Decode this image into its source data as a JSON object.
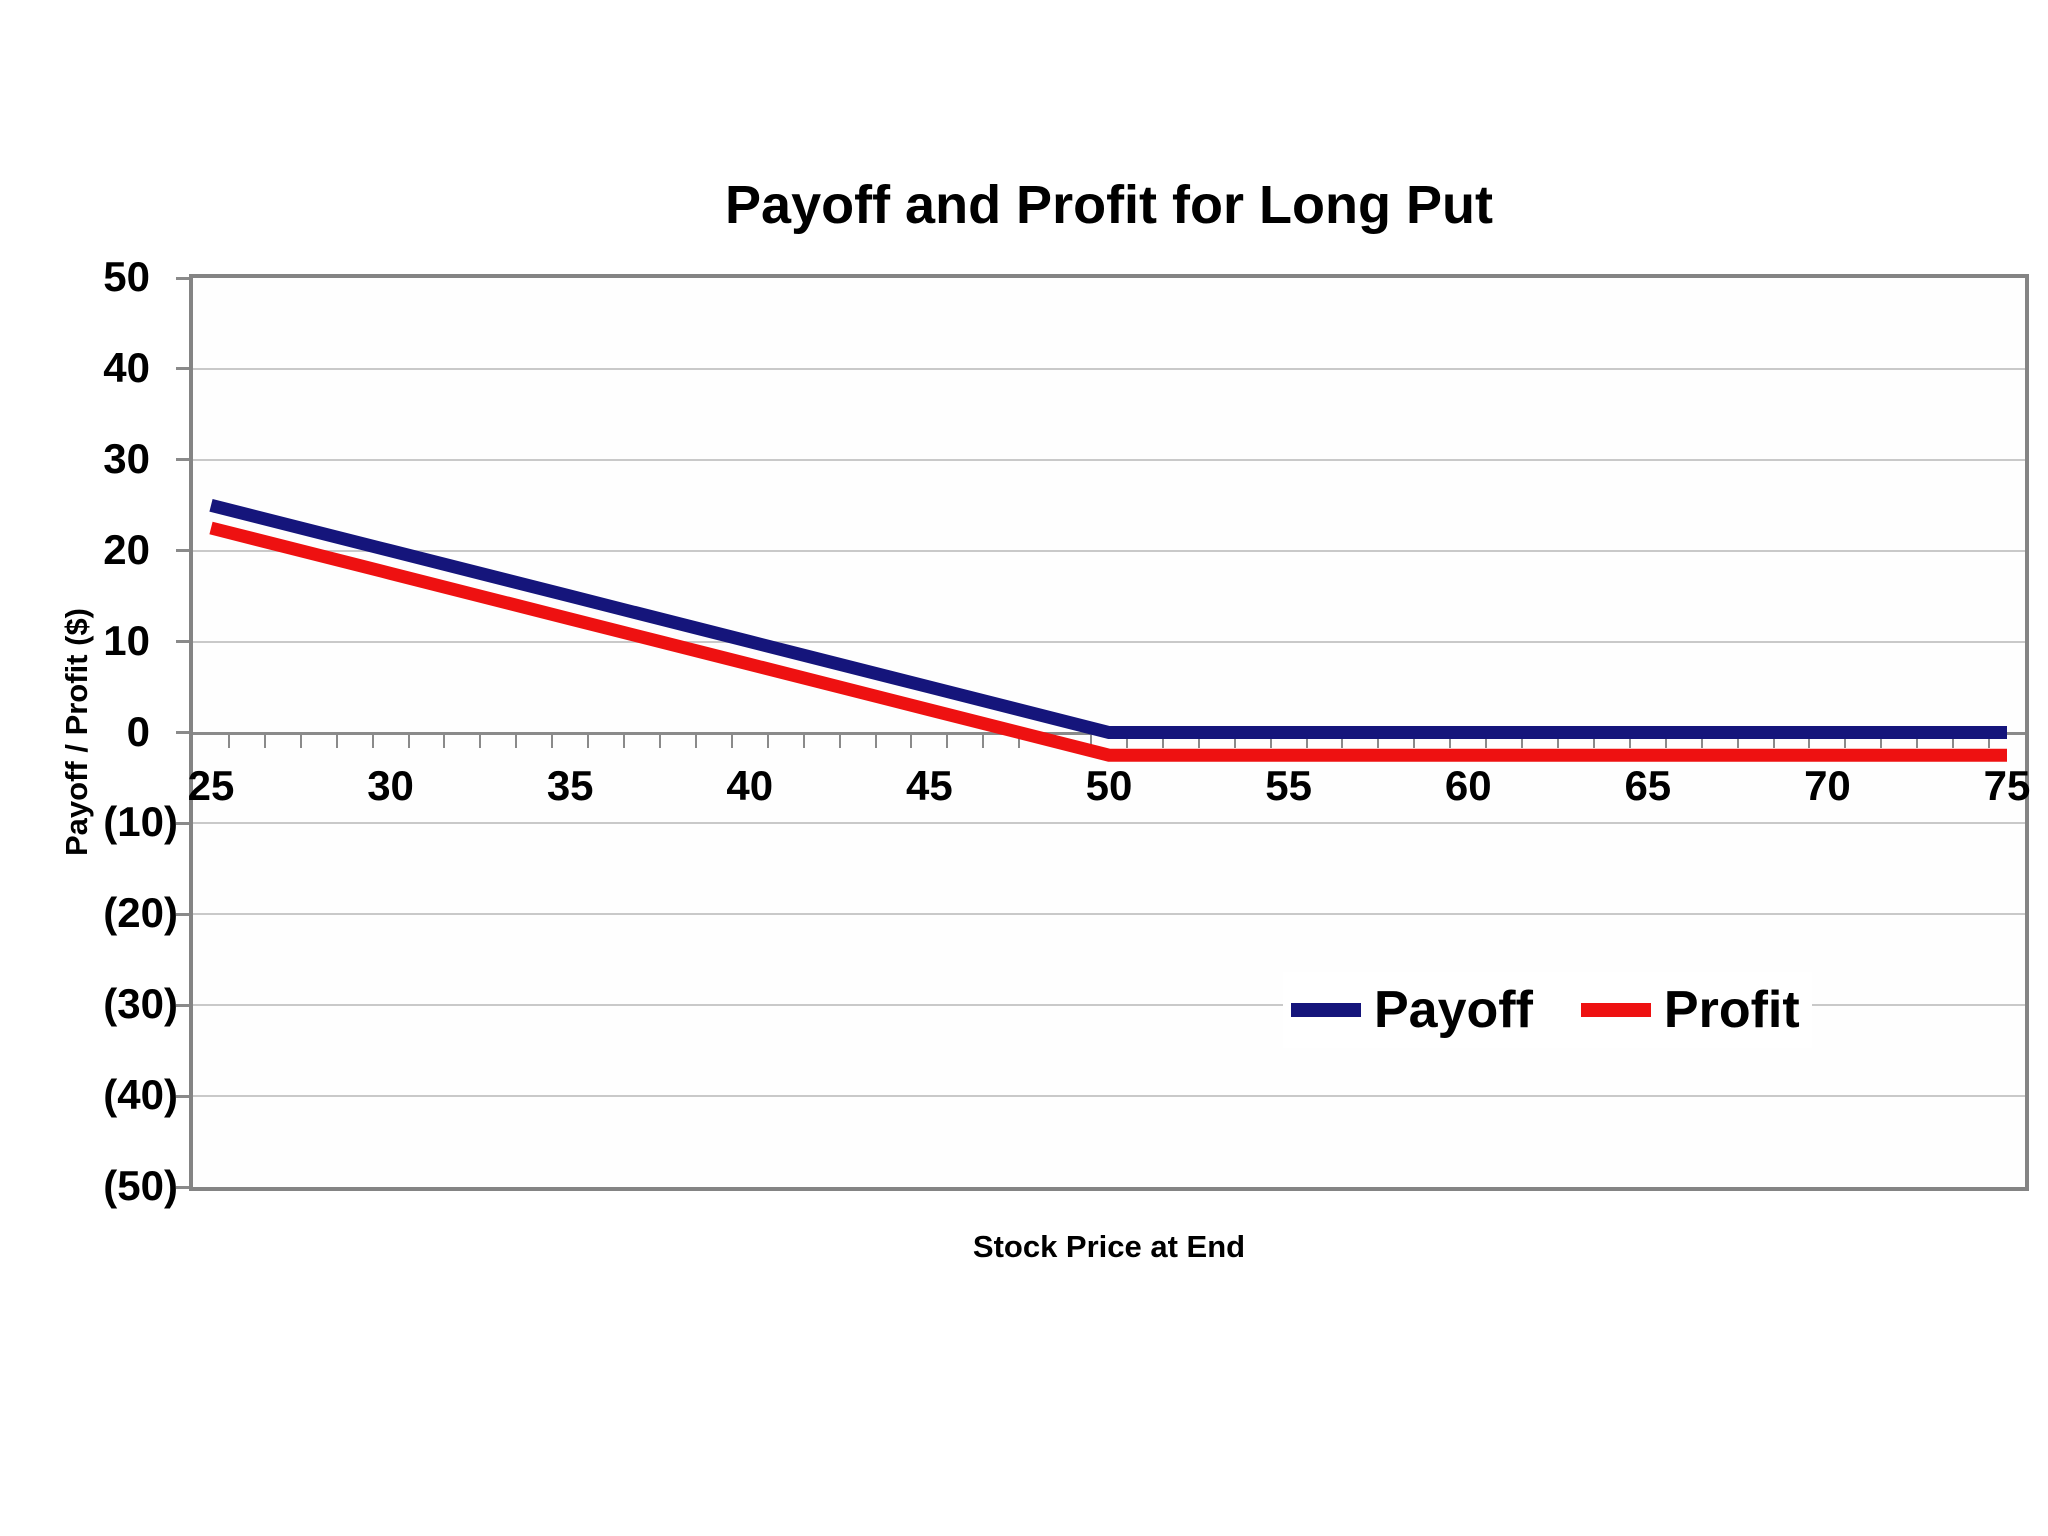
{
  "chart_data": {
    "type": "line",
    "title": "Payoff and Profit for Long Put",
    "xlabel": "Stock Price at End",
    "ylabel": "Payoff / Profit ($)",
    "xlim": [
      25,
      75
    ],
    "ylim": [
      -50,
      50
    ],
    "x_ticks": [
      25,
      30,
      35,
      40,
      45,
      50,
      55,
      60,
      65,
      70,
      75
    ],
    "x_minor_tick_step": 1,
    "y_ticks": [
      {
        "v": 50,
        "label": "50"
      },
      {
        "v": 40,
        "label": "40"
      },
      {
        "v": 30,
        "label": "30"
      },
      {
        "v": 20,
        "label": "20"
      },
      {
        "v": 10,
        "label": "10"
      },
      {
        "v": 0,
        "label": "0"
      },
      {
        "v": -10,
        "label": "(10)"
      },
      {
        "v": -20,
        "label": "(20)"
      },
      {
        "v": -30,
        "label": "(30)"
      },
      {
        "v": -40,
        "label": "(40)"
      },
      {
        "v": -50,
        "label": "(50)"
      }
    ],
    "grid": "horizontal",
    "legend_position": "inside-lower-right",
    "x": [
      25,
      30,
      35,
      40,
      45,
      50,
      55,
      60,
      65,
      70,
      75
    ],
    "series": [
      {
        "name": "Payoff",
        "color": "#15157B",
        "values": [
          25,
          20,
          15,
          10,
          5,
          0,
          0,
          0,
          0,
          0,
          0
        ]
      },
      {
        "name": "Profit",
        "color": "#EE1111",
        "values": [
          22.5,
          17.5,
          12.5,
          7.5,
          2.5,
          -2.5,
          -2.5,
          -2.5,
          -2.5,
          -2.5,
          -2.5
        ]
      }
    ]
  }
}
